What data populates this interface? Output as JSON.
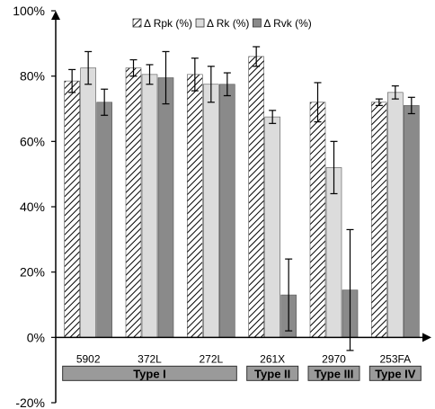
{
  "chart_data": {
    "type": "bar",
    "title": "",
    "xlabel": "",
    "ylabel": "",
    "ylim": [
      -20,
      100
    ],
    "yticks": [
      -20,
      0,
      20,
      40,
      60,
      80,
      100
    ],
    "ytick_labels": [
      "-20%",
      "0%",
      "20%",
      "40%",
      "60%",
      "80%",
      "100%"
    ],
    "categories": [
      "5902",
      "372L",
      "272L",
      "261X",
      "2970",
      "253FA"
    ],
    "legend_position": "top",
    "series": [
      {
        "name": "Δ Rpk (%)",
        "legend_label": "Δ Rpk (%)",
        "pattern": "hatch",
        "color": "#ffffff",
        "values": [
          78.5,
          82.5,
          80.5,
          86,
          72,
          72
        ],
        "errors": [
          3.5,
          2.5,
          5,
          3,
          6,
          1
        ]
      },
      {
        "name": "Δ Rk (%)",
        "legend_label": "Δ Rk (%)",
        "pattern": "solid",
        "color": "#dcdcdc",
        "values": [
          82.5,
          80.5,
          77.5,
          67.5,
          52,
          75
        ],
        "errors": [
          5,
          3,
          5.5,
          2,
          8,
          2
        ]
      },
      {
        "name": "Δ Rvk (%)",
        "legend_label": "Δ Rvk (%)",
        "pattern": "solid",
        "color": "#8a8a8a",
        "values": [
          72,
          79.5,
          77.5,
          13,
          14.5,
          71
        ],
        "errors": [
          4,
          8,
          3.5,
          11,
          18.5,
          2.5
        ]
      }
    ],
    "groups": [
      {
        "label": "Type I",
        "start": 0,
        "end": 2
      },
      {
        "label": "Type II",
        "start": 3,
        "end": 3
      },
      {
        "label": "Type III",
        "start": 4,
        "end": 4
      },
      {
        "label": "Type IV",
        "start": 5,
        "end": 5
      }
    ],
    "colors": {
      "axis": "#000000",
      "group_box": "#9a9a9a",
      "hatch_line": "#000000"
    }
  }
}
